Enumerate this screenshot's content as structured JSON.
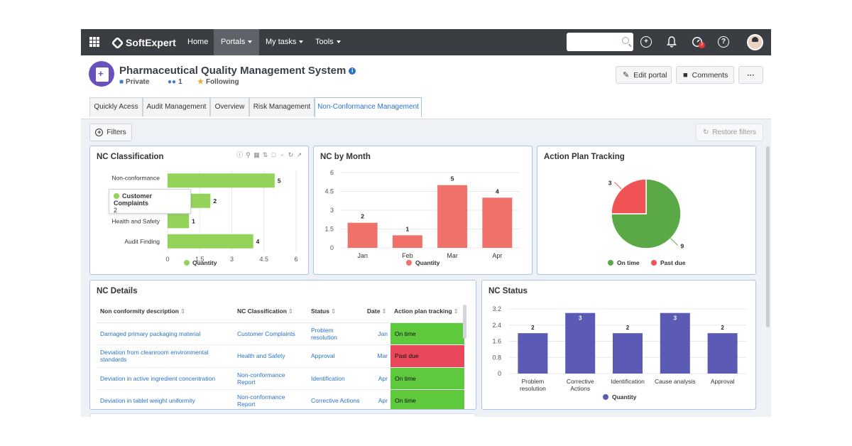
{
  "topbar": {
    "brand": "SoftExpert",
    "nav": [
      {
        "label": "Home"
      },
      {
        "label": "Portals"
      },
      {
        "label": "My tasks"
      },
      {
        "label": "Tools"
      }
    ],
    "notification_count": "2",
    "help_glyph": "?",
    "add_glyph": "+"
  },
  "header": {
    "title": "Pharmaceutical Quality Management System",
    "info_glyph": "i",
    "privacy": "Private",
    "members": "1",
    "following": "Following",
    "buttons": {
      "edit": "Edit portal",
      "comments": "Comments",
      "more": "···"
    }
  },
  "tabs": [
    {
      "label": "Quickly Acess"
    },
    {
      "label": "Audit Management"
    },
    {
      "label": "Overview"
    },
    {
      "label": "Risk Management"
    },
    {
      "label": "Non-Conformance Management"
    }
  ],
  "filters": {
    "label": "Filters",
    "restore": "Restore filters"
  },
  "colors": {
    "accent": "#2a73c9",
    "green_bar": "#93d35a",
    "red_bar": "#ef7169",
    "pie_green": "#5aa846",
    "pie_red": "#ef5354",
    "purple_bar": "#5b5bb6",
    "on_time": "#5fc93e",
    "past_due": "#e8485a"
  },
  "nc_classification": {
    "title": "NC Classification",
    "tooltip": {
      "name": "Customer Complaints",
      "value": "2"
    },
    "chart_data": {
      "type": "bar",
      "orientation": "horizontal",
      "categories": [
        "Non-conformance Report",
        "Customer Complaints",
        "Health and Safety",
        "Audit Finding"
      ],
      "category_labels": [
        "Non-conformance",
        "Cu",
        "Health and Safety",
        "Audit Finding"
      ],
      "series": [
        {
          "name": "Quantity",
          "values": [
            5,
            2,
            1,
            4
          ]
        }
      ],
      "xlim": [
        0,
        6
      ],
      "x_ticks": [
        "0",
        "1.5",
        "3",
        "4.5",
        "6"
      ],
      "legend": "bottom"
    }
  },
  "nc_by_month": {
    "title": "NC by Month",
    "chart_data": {
      "type": "bar",
      "categories": [
        "Jan",
        "Feb",
        "Mar",
        "Apr"
      ],
      "series": [
        {
          "name": "Quantity",
          "values": [
            2,
            1,
            5,
            4
          ]
        }
      ],
      "ylim": [
        0,
        6
      ],
      "y_ticks": [
        "0",
        "1.5",
        "3",
        "4.5",
        "6"
      ],
      "legend": "bottom"
    }
  },
  "action_plan": {
    "title": "Action Plan Tracking",
    "chart_data": {
      "type": "pie",
      "slices": [
        {
          "name": "On time",
          "value": 9
        },
        {
          "name": "Past due",
          "value": 3
        }
      ],
      "legend": "bottom"
    }
  },
  "nc_details": {
    "title": "NC Details",
    "sort_glyph": "⇕",
    "columns": [
      "Non conformity description",
      "NC Classification",
      "Status",
      "Date",
      "Action plan tracking"
    ],
    "rows": [
      {
        "description": "Damaged primary packaging material",
        "classification": "Customer Complaints",
        "status": "Problem resolution",
        "date": "Jan",
        "tracking": "On time",
        "state": "on"
      },
      {
        "description": "Deviation from cleanroom environmental standards",
        "classification": "Health and Safety",
        "status": "Approval",
        "date": "Mar",
        "tracking": "Past due",
        "state": "past"
      },
      {
        "description": "Deviation in active ingredient concentration",
        "classification": "Non-conformance Report",
        "status": "Identification",
        "date": "Apr",
        "tracking": "On time",
        "state": "on"
      },
      {
        "description": "Deviation in tablet weight uniformity",
        "classification": "Non-conformance Report",
        "status": "Corrective Actions",
        "date": "Apr",
        "tracking": "On time",
        "state": "on"
      }
    ]
  },
  "nc_status": {
    "title": "NC Status",
    "chart_data": {
      "type": "bar",
      "categories": [
        "Problem resolution",
        "Corrective Actions",
        "Identification",
        "Cause analysis",
        "Approval"
      ],
      "category_lines": [
        [
          "Problem",
          "resolution"
        ],
        [
          "Corrective",
          "Actions"
        ],
        [
          "Identification"
        ],
        [
          "Cause analysis"
        ],
        [
          "Approval"
        ]
      ],
      "series": [
        {
          "name": "Quantity",
          "values": [
            2,
            3,
            2,
            3,
            2
          ]
        }
      ],
      "ylim": [
        0,
        3.2
      ],
      "y_ticks": [
        "0",
        "0.8",
        "1.6",
        "2.4",
        "3.2"
      ],
      "legend": "bottom"
    }
  },
  "chart_icons": [
    "info-icon",
    "search-icon",
    "table-icon",
    "sort-icon",
    "export-icon",
    "comment-icon",
    "refresh-icon",
    "expand-icon"
  ]
}
